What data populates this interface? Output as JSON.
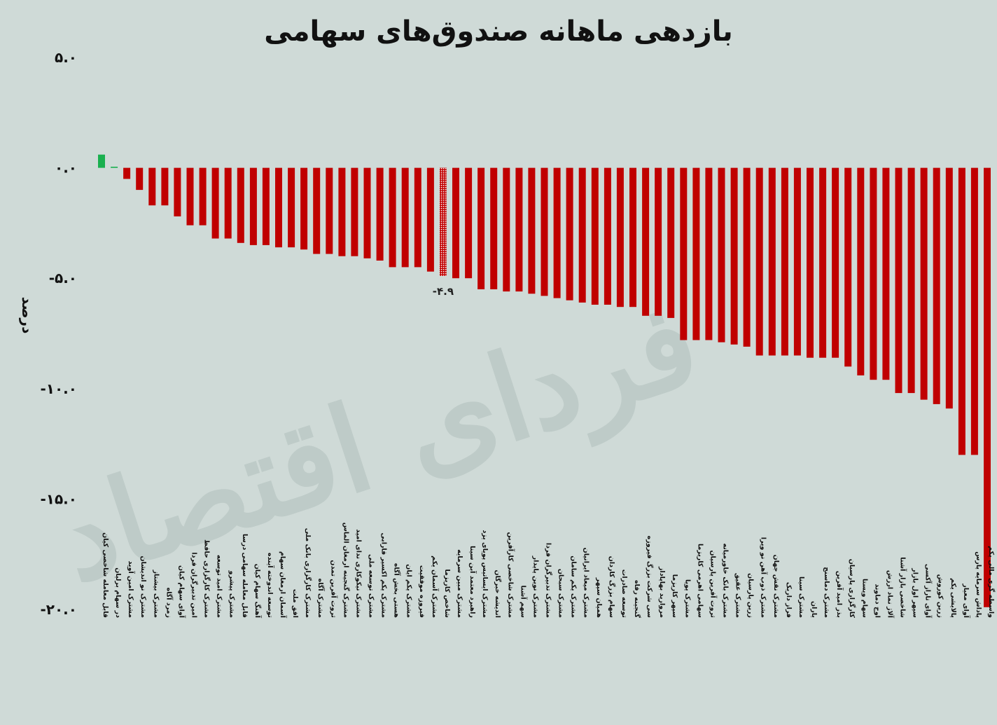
{
  "watermark": "فردای اقتصاد",
  "chart_data": {
    "type": "bar",
    "title": "بازدهی ماهانه صندوق‌های سهامی",
    "ylabel": "درصد",
    "xlabel": "",
    "ylim": [
      -20,
      5
    ],
    "yticks": [
      5,
      0,
      -5,
      -10,
      -15,
      -20
    ],
    "ytick_labels": [
      "۵.۰",
      "۰.۰",
      "-۵.۰",
      "-۱۰.۰",
      "-۱۵.۰",
      "-۲۰.۰"
    ],
    "colors": {
      "positive": "#1ab04f",
      "negative": "#c00000",
      "highlight_fill": "#e06060"
    },
    "highlight": {
      "index": 27,
      "label": "-۴.۹"
    },
    "categories": [
      "قابل معامله شاخصی کیان",
      "در سهام برلیان",
      "مشترک امین آوید",
      "مشترک نو اندیشان",
      "مشترک بیشتاز",
      "زمرد آگاه",
      "آوای سهام کیان",
      "امین تدبیرگران فردا",
      "مشترک کارگزاری حافظ",
      "مشترک امید توسعه",
      "مشترک پیشرو",
      "قابل معامله سهامی درسا",
      "آهنگ سهام کیان",
      "توسعه اندوخته آینده",
      "آسمان ارمغان سهام",
      "افق ملت",
      "مشترک کارگزاری بانک ملی",
      "مشترک آگاه",
      "ثروت آفرین تمدن",
      "مشترک گنجینه ارمغان الماس",
      "مشترک نیکوکاری ندای امید",
      "مشترک توسعه ملی",
      "مشترک یکم اکسیر فارابی",
      "هستی بخش آگاه",
      "مشترک یکم ایان",
      "فیروزه موفقیت",
      "مشترک آسمان یکم",
      "شاخص کاریزما",
      "مشترک مبین سرمایه",
      "راهبرد معتمد آبن سینا",
      "مشترک ایساتیس پویای یزد",
      "اندیشه خبرگان",
      "مشترک شاخصی کارآفرین",
      "سهم آشنا",
      "مشترک نوین پایدار",
      "مشترک تدبیرگران فردا",
      "مشترک سبحان",
      "مشترک یکم سامان",
      "مشترک میعاد ایرانیان",
      "همیان سپهر",
      "سهام بزرگ کاردان",
      "توسعه صادرات",
      "گنجینه رفاه",
      "سی شرکت بزرگ فیروزه",
      "مروارید بهاپاداز",
      "سپهر کاریزما",
      "مشترک پویا",
      "سهامی اهرمی کاریزما",
      "ثروت آفرین پارسیان",
      "مشترک بانک خاورمیانه",
      "مشترک عقیق",
      "زرین پارسیان",
      "مشترک ذوب آهن نو ویرا",
      "مشترک نقش جهان",
      "فراز داریک",
      "مشترک سینا",
      "یاران",
      "مشترک دماسنج",
      "بذر امید آفرین",
      "کارگزاری پارسیان",
      "سهام ویستا",
      "اوج دماوند",
      "آلاژ نماد ارزش",
      "شاخصی بازار آشنا",
      "سپهر اول بازار",
      "آوای تاراز آکسی",
      "زرین کوروش",
      "پالایشی یکم",
      "آوای معیار",
      "پاداش سرمایه پارس",
      "واسطه گری مالی یکم"
    ],
    "values": [
      0.6,
      0.05,
      -0.5,
      -1.0,
      -1.7,
      -1.7,
      -2.2,
      -2.6,
      -2.6,
      -3.2,
      -3.2,
      -3.4,
      -3.5,
      -3.5,
      -3.6,
      -3.6,
      -3.7,
      -3.9,
      -3.9,
      -4.0,
      -4.0,
      -4.1,
      -4.2,
      -4.5,
      -4.5,
      -4.5,
      -4.7,
      -4.9,
      -5.0,
      -5.0,
      -5.5,
      -5.5,
      -5.6,
      -5.6,
      -5.7,
      -5.8,
      -5.9,
      -6.0,
      -6.1,
      -6.2,
      -6.2,
      -6.3,
      -6.3,
      -6.7,
      -6.7,
      -6.8,
      -7.8,
      -7.8,
      -7.8,
      -7.9,
      -8.0,
      -8.1,
      -8.5,
      -8.5,
      -8.5,
      -8.5,
      -8.6,
      -8.6,
      -8.6,
      -9.0,
      -9.4,
      -9.6,
      -9.6,
      -10.2,
      -10.2,
      -10.5,
      -10.7,
      -10.9,
      -13.0,
      -13.0,
      -19.9
    ]
  }
}
